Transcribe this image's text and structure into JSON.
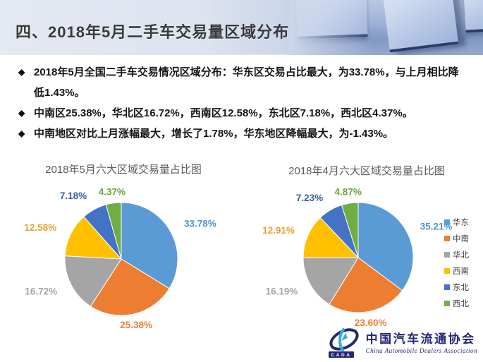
{
  "header": {
    "title": "四、2018年5月二手车交易量区域分布"
  },
  "bullet_marker": "◆",
  "bullets": [
    "2018年5月全国二手车交易情况区域分布：华东区交易占比最大，为33.78%，与上月相比降低1.43%。",
    "中南区25.38%，华北区16.72%，西南区12.58%，东北区7.18%，西北区4.37%。",
    "中南地区对比上月涨幅最大，增长了1.78%，华东地区降幅最大，为-1.43%。"
  ],
  "chart_data": [
    {
      "type": "pie",
      "title": "2018年5月六大区域交易量占比图",
      "categories": [
        "华东",
        "中南",
        "华北",
        "西南",
        "东北",
        "西北"
      ],
      "category_keys": [
        "huadong",
        "zhongnan",
        "huabei",
        "xinan",
        "dongbei",
        "xibei"
      ],
      "values": [
        33.78,
        25.38,
        16.72,
        12.58,
        7.18,
        4.37
      ],
      "labels": [
        "33.78%",
        "25.38%",
        "16.72%",
        "12.58%",
        "7.18%",
        "4.37%"
      ],
      "colors": [
        "#5B9BD5",
        "#ED7D31",
        "#A5A5A5",
        "#FFC000",
        "#4472C4",
        "#70AD47"
      ],
      "label_colors": [
        "#4E91CE",
        "#ED7D31",
        "#A5A5A5",
        "#E2A42F",
        "#3560AD",
        "#6BA43B"
      ],
      "start_angle_deg": 0,
      "direction": "clockwise",
      "legend_position": "none"
    },
    {
      "type": "pie",
      "title": "2018年4月六大区域交易量占比图",
      "categories": [
        "华东",
        "中南",
        "华北",
        "西南",
        "东北",
        "西北"
      ],
      "category_keys": [
        "huadong",
        "zhongnan",
        "huabei",
        "xinan",
        "dongbei",
        "xibei"
      ],
      "values": [
        35.21,
        23.6,
        16.19,
        12.91,
        7.23,
        4.87
      ],
      "labels": [
        "35.21%",
        "23.60%",
        "16.19%",
        "12.91%",
        "7.23%",
        "4.87%"
      ],
      "colors": [
        "#5B9BD5",
        "#ED7D31",
        "#A5A5A5",
        "#FFC000",
        "#4472C4",
        "#70AD47"
      ],
      "label_colors": [
        "#4E91CE",
        "#ED7D31",
        "#A5A5A5",
        "#E2A42F",
        "#3560AD",
        "#6BA43B"
      ],
      "start_angle_deg": 0,
      "direction": "clockwise",
      "legend_position": "right"
    }
  ],
  "logo": {
    "abbr": "CADA",
    "org_cn": "中国汽车流通协会",
    "org_en": "China Automobile Dealers Association",
    "color": "#232874"
  }
}
